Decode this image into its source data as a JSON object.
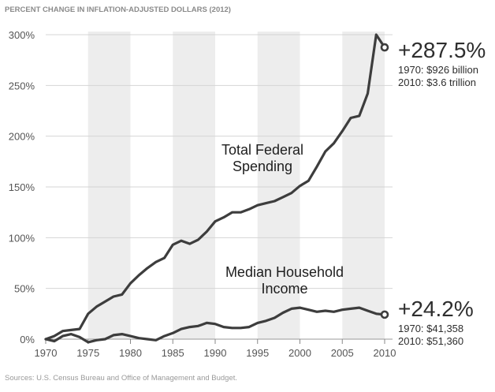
{
  "chart_data": {
    "type": "line",
    "header": "PERCENT CHANGE IN INFLATION-ADJUSTED DOLLARS (2012)",
    "source": "Sources: U.S. Census Bureau and Office of Management and Budget.",
    "xlim": [
      1970,
      2010
    ],
    "ylim": [
      0,
      300
    ],
    "x_ticks": [
      "1970",
      "1975",
      "1980",
      "1985",
      "1990",
      "1995",
      "2000",
      "2005",
      "2010"
    ],
    "y_ticks": [
      "0%",
      "50%",
      "100%",
      "150%",
      "200%",
      "250%",
      "300%"
    ],
    "grid": "alternating vertical bands",
    "series": [
      {
        "name": "Total Federal Spending",
        "label_lines": [
          "Total Federal",
          "Spending"
        ],
        "color": "#3d3d3d",
        "x": [
          1970,
          1971,
          1972,
          1973,
          1974,
          1975,
          1976,
          1977,
          1978,
          1979,
          1980,
          1981,
          1982,
          1983,
          1984,
          1985,
          1986,
          1987,
          1988,
          1989,
          1990,
          1991,
          1992,
          1993,
          1994,
          1995,
          1996,
          1997,
          1998,
          1999,
          2000,
          2001,
          2002,
          2003,
          2004,
          2005,
          2006,
          2007,
          2008,
          2009,
          2010
        ],
        "y": [
          0,
          3,
          8,
          9,
          10,
          25,
          32,
          37,
          42,
          44,
          55,
          63,
          70,
          76,
          80,
          93,
          97,
          94,
          98,
          106,
          116,
          120,
          125,
          125,
          128,
          132,
          134,
          136,
          140,
          144,
          151,
          156,
          170,
          185,
          193,
          205,
          218,
          220,
          242,
          300,
          287.5
        ],
        "end_value": "+287.5%",
        "end_notes": [
          "1970: $926 billion",
          "2010: $3.6 trillion"
        ]
      },
      {
        "name": "Median Household Income",
        "label_lines": [
          "Median Household",
          "Income"
        ],
        "color": "#3d3d3d",
        "x": [
          1970,
          1971,
          1972,
          1973,
          1974,
          1975,
          1976,
          1977,
          1978,
          1979,
          1980,
          1981,
          1982,
          1983,
          1984,
          1985,
          1986,
          1987,
          1988,
          1989,
          1990,
          1991,
          1992,
          1993,
          1994,
          1995,
          1996,
          1997,
          1998,
          1999,
          2000,
          2001,
          2002,
          2003,
          2004,
          2005,
          2006,
          2007,
          2008,
          2009,
          2010
        ],
        "y": [
          0,
          -2,
          3,
          5,
          2,
          -3,
          -1,
          0,
          4,
          5,
          3,
          1,
          0,
          -1,
          3,
          6,
          10,
          12,
          13,
          16,
          15,
          12,
          11,
          11,
          12,
          16,
          18,
          21,
          26,
          30,
          31,
          29,
          27,
          28,
          27,
          29,
          30,
          31,
          28,
          25,
          24.2
        ],
        "end_value": "+24.2%",
        "end_notes": [
          "1970: $41,358",
          "2010: $51,360"
        ]
      }
    ]
  }
}
